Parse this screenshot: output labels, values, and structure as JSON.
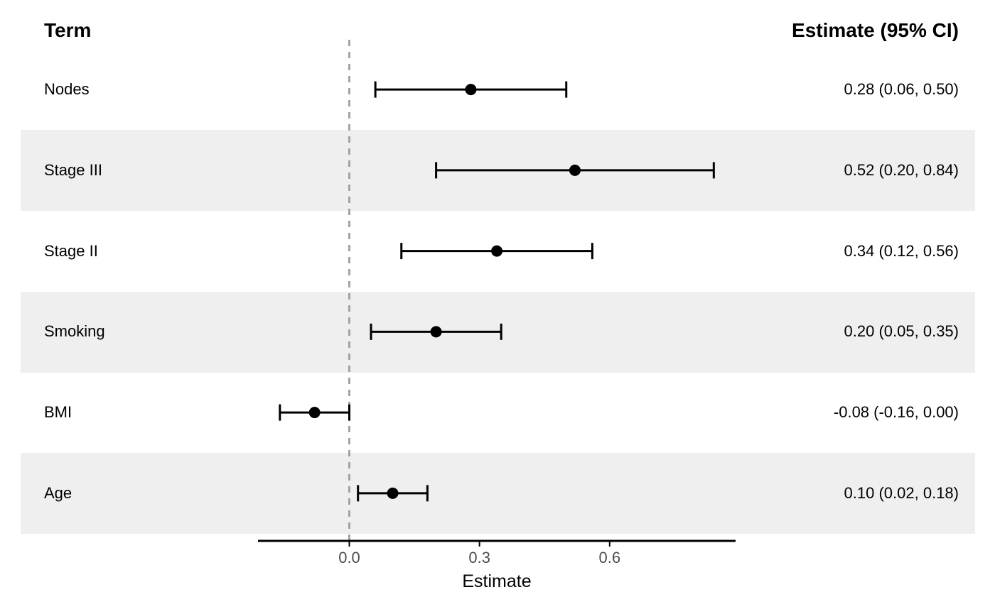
{
  "page": {
    "background": "#ffffff"
  },
  "chart_data": {
    "type": "scatter",
    "subtype": "forest_plot",
    "title": "",
    "left_header": "Term",
    "right_header": "Estimate (95% CI)",
    "xlabel": "Estimate",
    "x_ticks": [
      "0.0",
      "0.3",
      "0.6"
    ],
    "x_tick_values": [
      0.0,
      0.3,
      0.6
    ],
    "xlim": [
      -0.21,
      0.89
    ],
    "reference_line_x": 0.0,
    "grid": "off",
    "legend": "none",
    "rows": [
      {
        "term": "Nodes",
        "estimate": 0.28,
        "ci_low": 0.06,
        "ci_high": 0.5,
        "ci_label": "0.28 (0.06, 0.50)",
        "striped": false
      },
      {
        "term": "Stage III",
        "estimate": 0.52,
        "ci_low": 0.2,
        "ci_high": 0.84,
        "ci_label": "0.52 (0.20, 0.84)",
        "striped": true
      },
      {
        "term": "Stage II",
        "estimate": 0.34,
        "ci_low": 0.12,
        "ci_high": 0.56,
        "ci_label": "0.34 (0.12, 0.56)",
        "striped": false
      },
      {
        "term": "Smoking",
        "estimate": 0.2,
        "ci_low": 0.05,
        "ci_high": 0.35,
        "ci_label": "0.20 (0.05, 0.35)",
        "striped": true
      },
      {
        "term": "BMI",
        "estimate": -0.08,
        "ci_low": -0.16,
        "ci_high": 0.0,
        "ci_label": "-0.08 (-0.16, 0.00)",
        "striped": false
      },
      {
        "term": "Age",
        "estimate": 0.1,
        "ci_low": 0.02,
        "ci_high": 0.18,
        "ci_label": "0.10 (0.02, 0.18)",
        "striped": true
      }
    ],
    "colors": {
      "stripe": "#efefef",
      "reference_line": "#a3a3a3",
      "data": "#000000",
      "axis_line": "#000000",
      "tick_label": "#4d4d4d",
      "text": "#000000"
    }
  }
}
